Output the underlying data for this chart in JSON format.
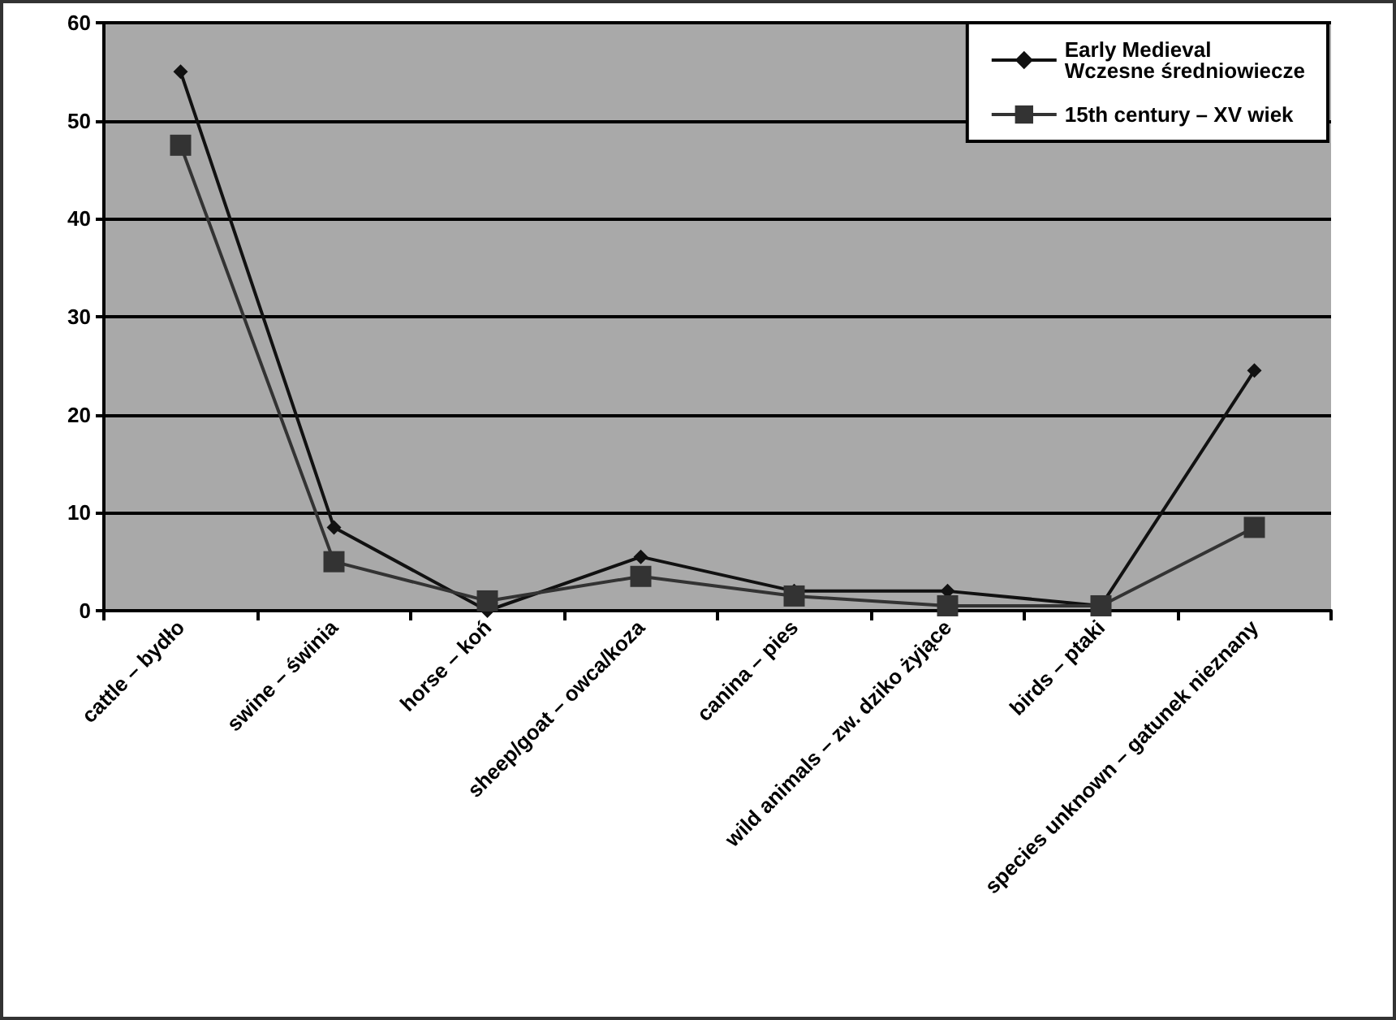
{
  "chart_data": {
    "type": "line",
    "categories": [
      "cattle – bydło",
      "swine – świnia",
      "horse – koń",
      "sheep/goat – owca/koza",
      "canina – pies",
      "wild animals – zw. dziko żyjące",
      "birds – ptaki",
      "species unknown – gatunek nieznany"
    ],
    "series": [
      {
        "name": "Early Medieval\nWczesne średniowiecze",
        "color": "#111111",
        "marker": "diamond",
        "values": [
          55,
          8.5,
          0,
          5.5,
          2,
          2,
          0.5,
          24.5
        ]
      },
      {
        "name": "15th century – XV wiek",
        "color": "#333333",
        "marker": "square",
        "values": [
          47.5,
          5,
          1,
          3.5,
          1.5,
          0.5,
          0.5,
          8.5
        ]
      }
    ],
    "ylim": [
      0,
      60
    ],
    "yticks": [
      0,
      10,
      20,
      30,
      40,
      50,
      60
    ],
    "grid": "y",
    "legend": "top right"
  }
}
